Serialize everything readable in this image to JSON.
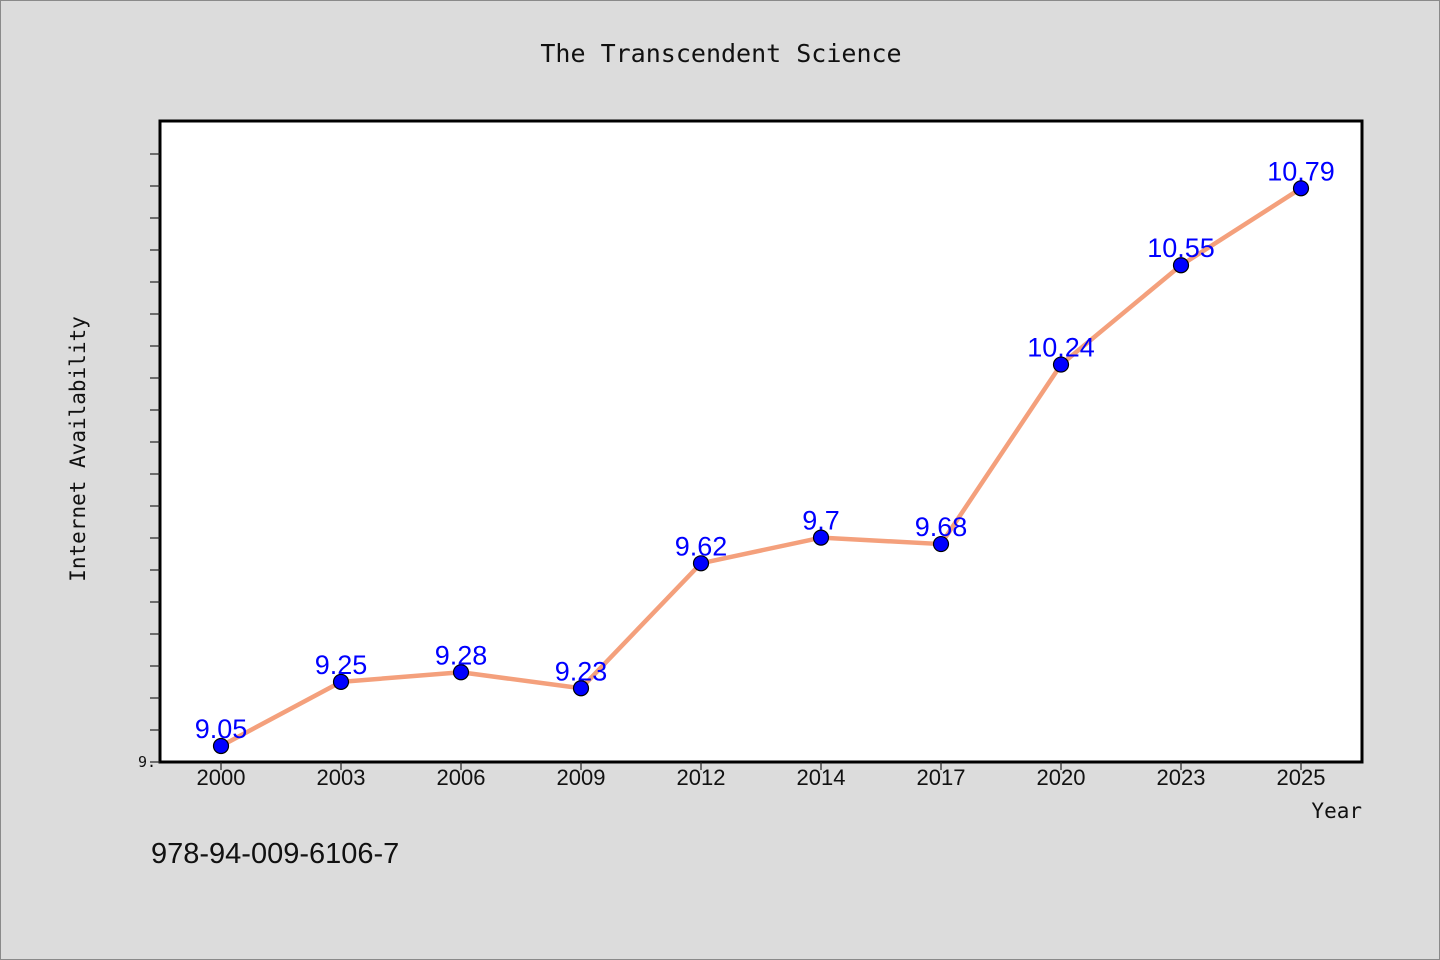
{
  "chart_data": {
    "type": "line",
    "title": "The Transcendent Science",
    "xlabel": "Year",
    "ylabel": "Internet Availability",
    "categories": [
      "2000",
      "2003",
      "2006",
      "2009",
      "2012",
      "2014",
      "2017",
      "2020",
      "2023",
      "2025"
    ],
    "series": [
      {
        "values": [
          9.05,
          9.25,
          9.28,
          9.23,
          9.62,
          9.7,
          9.68,
          10.24,
          10.55,
          10.79
        ],
        "data_labels": [
          "9.05",
          "9.25",
          "9.28",
          "9.23",
          "9.62",
          "9.7",
          "9.68",
          "10.24",
          "10.55",
          "10.79"
        ],
        "line_color": "#f4a07c",
        "marker_color": "#0000ff"
      }
    ],
    "ylim": [
      9.0,
      11.0
    ],
    "y_tick_labels": [
      "9."
    ],
    "grid": false,
    "legend": "none"
  },
  "footer": {
    "isbn": "978-94-009-6106-7"
  },
  "colors": {
    "background": "#dcdcdc",
    "plot_background": "#ffffff",
    "data_label": "#0000ff"
  }
}
